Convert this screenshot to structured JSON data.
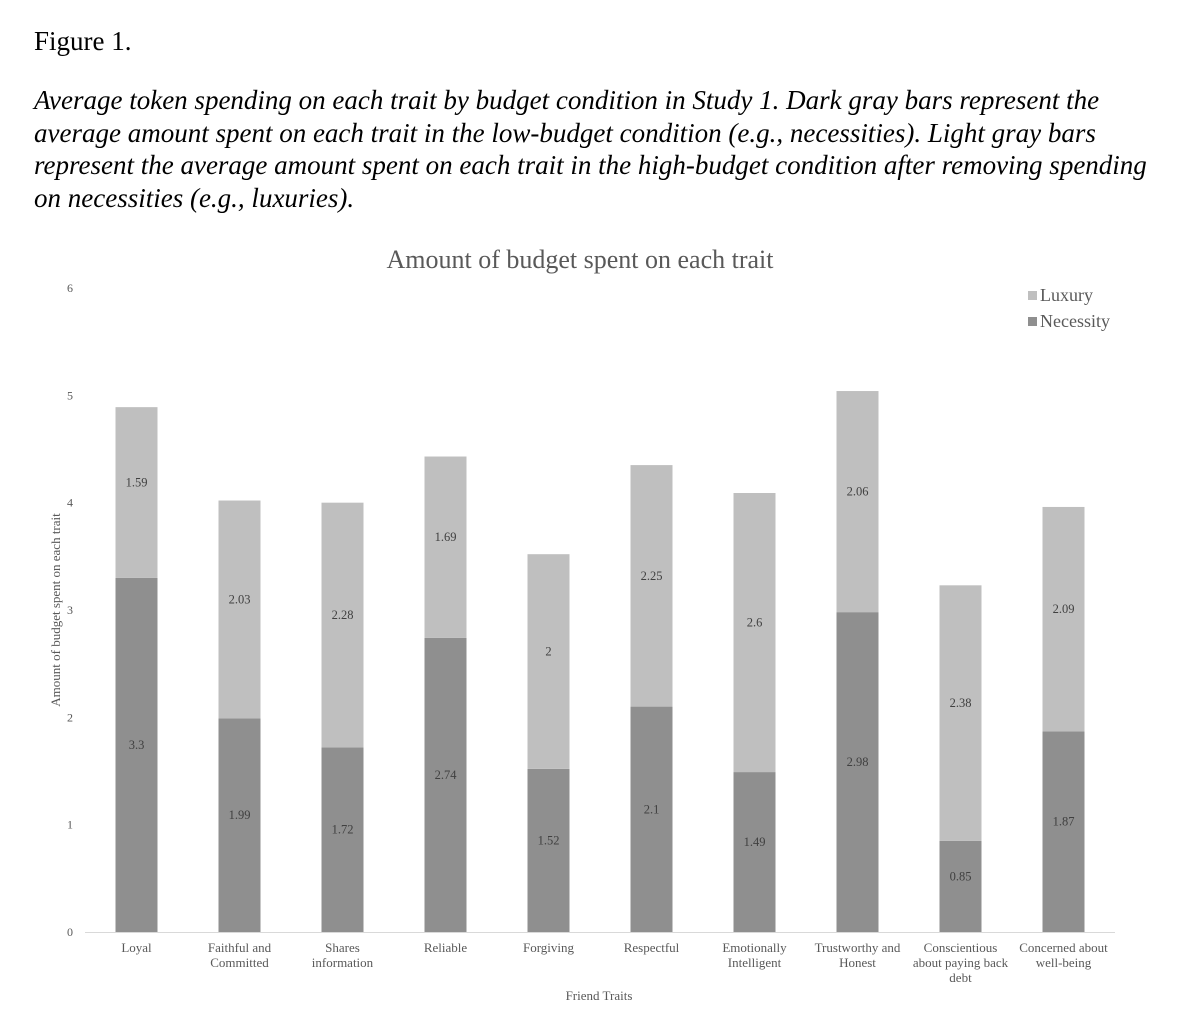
{
  "figure": {
    "label": "Figure 1.",
    "caption": "Average token spending on each trait by budget condition in Study 1. Dark gray bars represent the average amount spent on each trait in the low-budget condition (e.g., necessities). Light gray bars represent the average amount spent on each trait in the high-budget condition after removing spending on necessities (e.g., luxuries)."
  },
  "chart_data": {
    "type": "bar",
    "stacked": true,
    "title": "Amount of budget spent on each trait",
    "xlabel": "Friend Traits",
    "ylabel": "Amount of budget spent on each trait",
    "ylim": [
      0,
      6
    ],
    "yticks": [
      0,
      1,
      2,
      3,
      4,
      5,
      6
    ],
    "grid": false,
    "legend_position": "top-right",
    "categories": [
      "Loyal",
      "Faithful and Committed",
      "Shares information",
      "Reliable",
      "Forgiving",
      "Respectful",
      "Emotionally Intelligent",
      "Trustworthy and Honest",
      "Conscientious about paying back debt",
      "Concerned about well-being"
    ],
    "category_lines": [
      [
        "Loyal"
      ],
      [
        "Faithful and",
        "Committed"
      ],
      [
        "Shares",
        "information"
      ],
      [
        "Reliable"
      ],
      [
        "Forgiving"
      ],
      [
        "Respectful"
      ],
      [
        "Emotionally",
        "Intelligent"
      ],
      [
        "Trustworthy and",
        "Honest"
      ],
      [
        "Conscientious",
        "about paying back",
        "debt"
      ],
      [
        "Concerned about",
        "well-being"
      ]
    ],
    "series": [
      {
        "name": "Necessity",
        "color": "#8f8f8f",
        "values": [
          3.3,
          1.99,
          1.72,
          2.74,
          1.52,
          2.1,
          1.49,
          2.98,
          0.85,
          1.87
        ],
        "labels": [
          "3.3",
          "1.99",
          "1.72",
          "2.74",
          "1.52",
          "2.1",
          "1.49",
          "2.98",
          "0.85",
          "1.87"
        ]
      },
      {
        "name": "Luxury",
        "color": "#bfbfbf",
        "values": [
          1.59,
          2.03,
          2.28,
          1.69,
          2,
          2.25,
          2.6,
          2.06,
          2.38,
          2.09
        ],
        "labels": [
          "1.59",
          "2.03",
          "2.28",
          "1.69",
          "2",
          "2.25",
          "2.6",
          "2.06",
          "2.38",
          "2.09"
        ]
      }
    ],
    "legend_order": [
      "Luxury",
      "Necessity"
    ]
  }
}
